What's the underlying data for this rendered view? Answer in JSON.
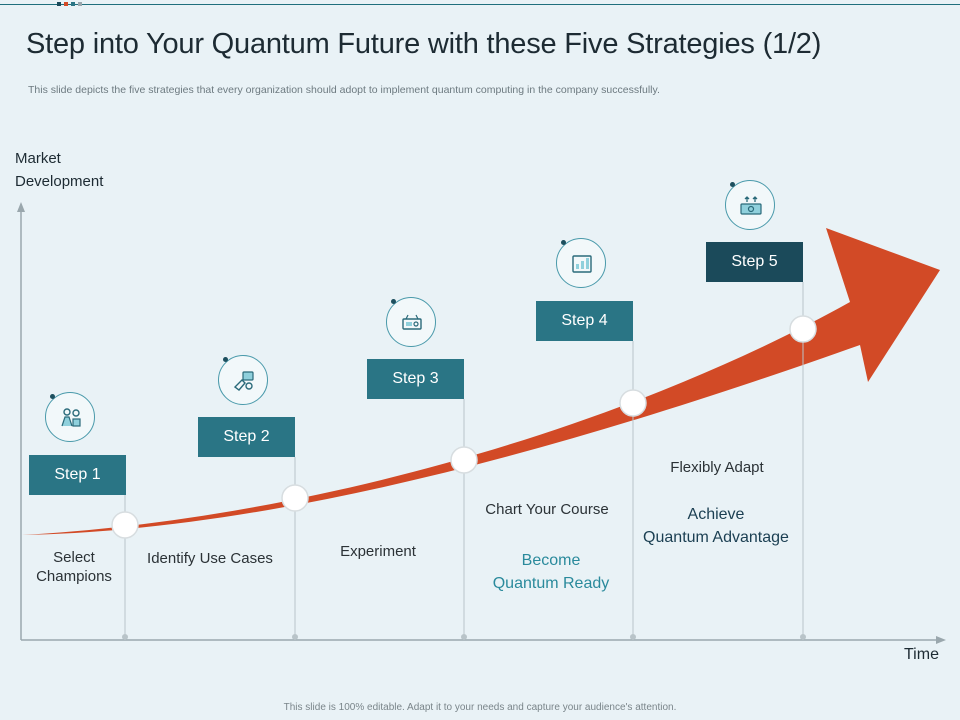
{
  "title": "Step into Your Quantum Future with these Five Strategies (1/2)",
  "subtitle": "This slide depicts the five strategies that every  organization should adopt to implement quantum computing in the company successfully.",
  "axes": {
    "y_label_line1": "Market",
    "y_label_line2": "Development",
    "x_label": "Time"
  },
  "steps": [
    {
      "label": "Step 1",
      "icon": "champions-icon",
      "box_color": "#2a7585"
    },
    {
      "label": "Step 2",
      "icon": "use-cases-icon",
      "box_color": "#2a7585"
    },
    {
      "label": "Step 3",
      "icon": "experiment-icon",
      "box_color": "#2a7585"
    },
    {
      "label": "Step 4",
      "icon": "chart-course-icon",
      "box_color": "#2a7585"
    },
    {
      "label": "Step 5",
      "icon": "adapt-icon",
      "box_color": "#1b4a5a"
    }
  ],
  "strategies": [
    {
      "line1": "Select",
      "line2": "Champions"
    },
    {
      "line1": "Identify  Use Cases",
      "line2": ""
    },
    {
      "line1": "Experiment",
      "line2": ""
    },
    {
      "line1": "Chart Your  Course",
      "line2": ""
    },
    {
      "line1": "Flexibly Adapt",
      "line2": ""
    }
  ],
  "outcomes": [
    {
      "line1": "Become",
      "line2": "Quantum Ready",
      "color": "#2a8a9c"
    },
    {
      "line1": "Achieve",
      "line2": "Quantum Advantage",
      "color": "#1b3f52"
    }
  ],
  "colors": {
    "arrow": "#d24a26",
    "teal": "#2a7585",
    "dark_teal": "#1b4a5a",
    "axis": "#9aa7ad"
  },
  "footer": "This slide is 100% editable.  Adapt it to your needs and capture your audience's attention."
}
